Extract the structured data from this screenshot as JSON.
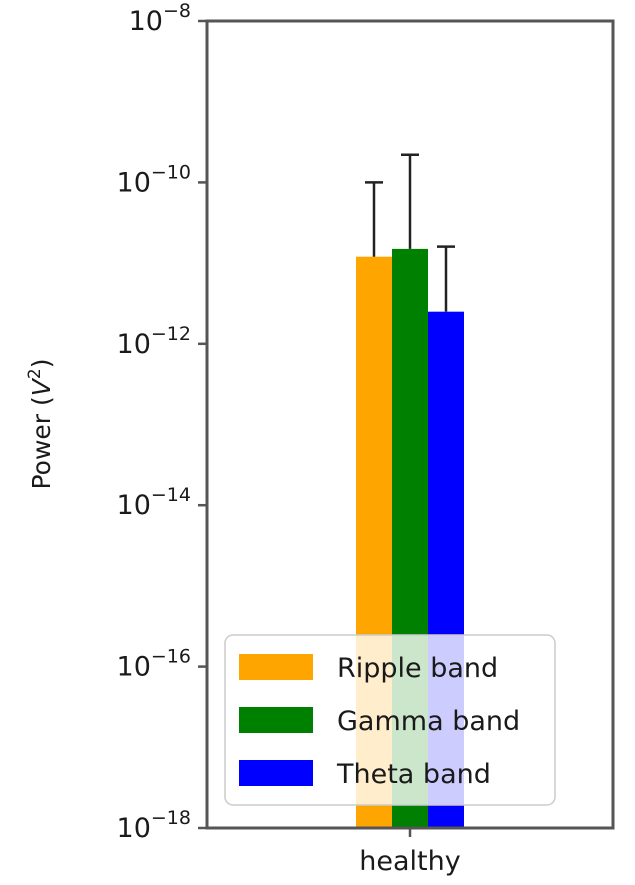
{
  "chart_data": {
    "type": "bar",
    "categories": [
      "healthy"
    ],
    "ylabel_base": "Power (",
    "ylabel_var": "V",
    "ylabel_exp": "2",
    "ylabel_close": ")",
    "yscale": "log",
    "ylim": [
      1e-18,
      1e-08
    ],
    "yticks": [
      {
        "value": 1e-18,
        "base": "10",
        "exp": "−18"
      },
      {
        "value": 1e-16,
        "base": "10",
        "exp": "−16"
      },
      {
        "value": 1e-14,
        "base": "10",
        "exp": "−14"
      },
      {
        "value": 1e-12,
        "base": "10",
        "exp": "−12"
      },
      {
        "value": 1e-10,
        "base": "10",
        "exp": "−10"
      },
      {
        "value": 1e-08,
        "base": "10",
        "exp": "−8"
      }
    ],
    "series": [
      {
        "name": "Ripple band",
        "color": "#FFA500",
        "values": [
          1.2e-11
        ],
        "err_upper": [
          1e-10
        ]
      },
      {
        "name": "Gamma band",
        "color": "#008000",
        "values": [
          1.5e-11
        ],
        "err_upper": [
          2.2e-10
        ]
      },
      {
        "name": "Theta band",
        "color": "#0000FF",
        "values": [
          2.5e-12
        ],
        "err_upper": [
          1.6e-11
        ]
      }
    ],
    "legend": {
      "position": "lower-left"
    },
    "grid": false
  }
}
